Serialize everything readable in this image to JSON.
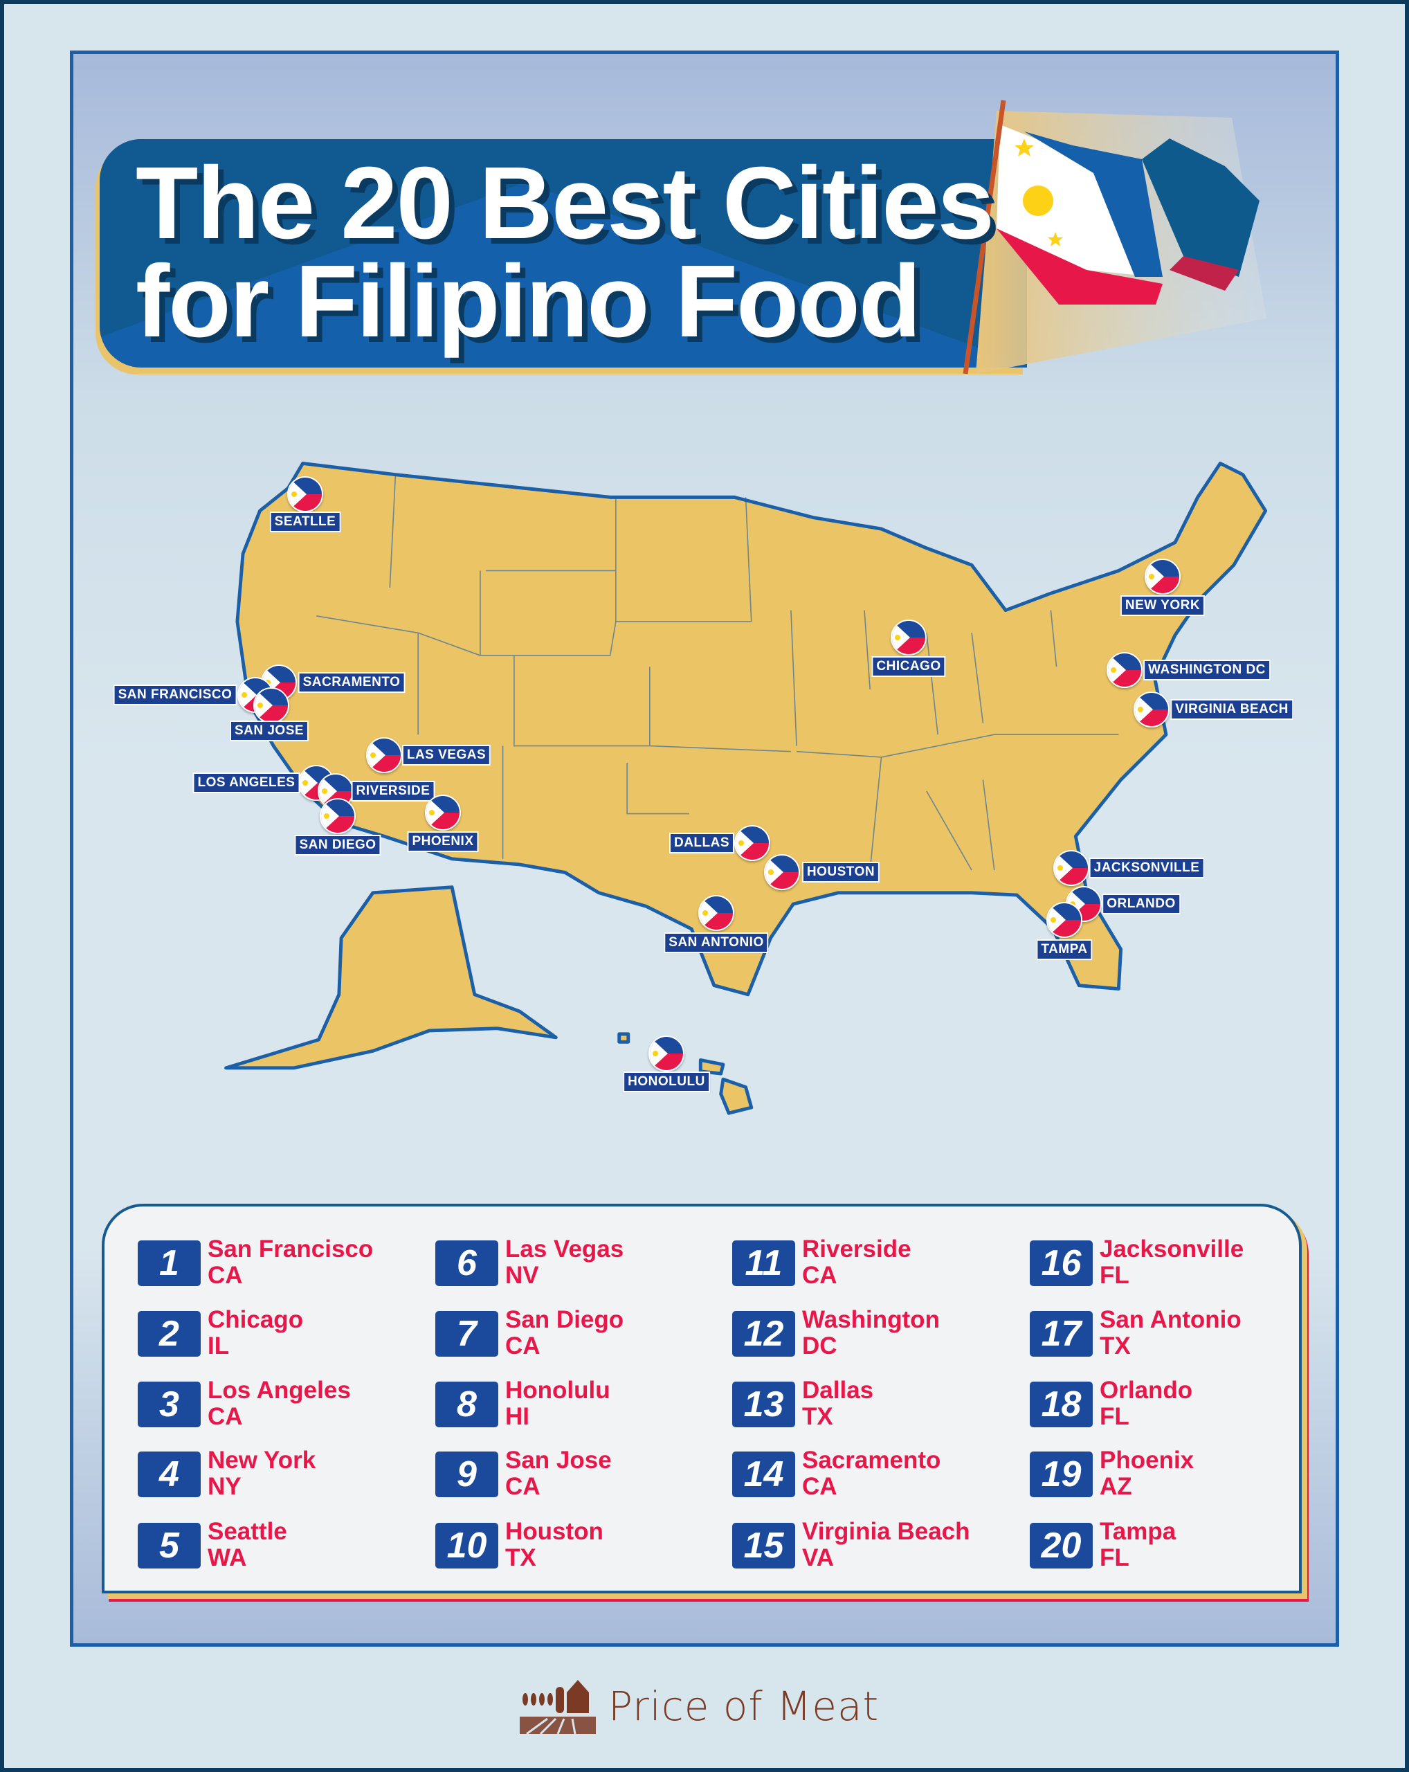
{
  "header": {
    "title_line1": "The 20 Best Cities",
    "title_line2": "for Filipino Food"
  },
  "colors": {
    "accent_blue": "#1b4a9c",
    "accent_red": "#e8174a",
    "map_fill": "#ebc466",
    "map_border": "#1a5fa8"
  },
  "map": {
    "markers": [
      "SEATLLE",
      "SACRAMENTO",
      "SAN FRANCISCO",
      "SAN JOSE",
      "LAS VEGAS",
      "LOS ANGELES",
      "RIVERSIDE",
      "SAN DIEGO",
      "PHOENIX",
      "DALLAS",
      "HOUSTON",
      "SAN ANTONIO",
      "CHICAGO",
      "NEW YORK",
      "WASHINGTON DC",
      "VIRGINIA BEACH",
      "JACKSONVILLE",
      "ORLANDO",
      "TAMPA",
      "HONOLULU"
    ],
    "marker_icon": "philippine-flag-icon"
  },
  "ranking": [
    {
      "rank": "1",
      "city": "San Francisco",
      "state": "CA"
    },
    {
      "rank": "2",
      "city": "Chicago",
      "state": "IL"
    },
    {
      "rank": "3",
      "city": "Los Angeles",
      "state": "CA"
    },
    {
      "rank": "4",
      "city": "New York",
      "state": "NY"
    },
    {
      "rank": "5",
      "city": "Seattle",
      "state": "WA"
    },
    {
      "rank": "6",
      "city": "Las Vegas",
      "state": "NV"
    },
    {
      "rank": "7",
      "city": "San Diego",
      "state": "CA"
    },
    {
      "rank": "8",
      "city": "Honolulu",
      "state": "HI"
    },
    {
      "rank": "9",
      "city": "San Jose",
      "state": "CA"
    },
    {
      "rank": "10",
      "city": "Houston",
      "state": "TX"
    },
    {
      "rank": "11",
      "city": "Riverside",
      "state": "CA"
    },
    {
      "rank": "12",
      "city": "Washington",
      "state": "DC"
    },
    {
      "rank": "13",
      "city": "Dallas",
      "state": "TX"
    },
    {
      "rank": "14",
      "city": "Sacramento",
      "state": "CA"
    },
    {
      "rank": "15",
      "city": "Virginia Beach",
      "state": "VA"
    },
    {
      "rank": "16",
      "city": "Jacksonville",
      "state": "FL"
    },
    {
      "rank": "17",
      "city": "San Antonio",
      "state": "TX"
    },
    {
      "rank": "18",
      "city": "Orlando",
      "state": "FL"
    },
    {
      "rank": "19",
      "city": "Phoenix",
      "state": "AZ"
    },
    {
      "rank": "20",
      "city": "Tampa",
      "state": "FL"
    }
  ],
  "footer": {
    "logo_text": "Price of Meat",
    "logo_icon": "farm-barn-icon"
  }
}
